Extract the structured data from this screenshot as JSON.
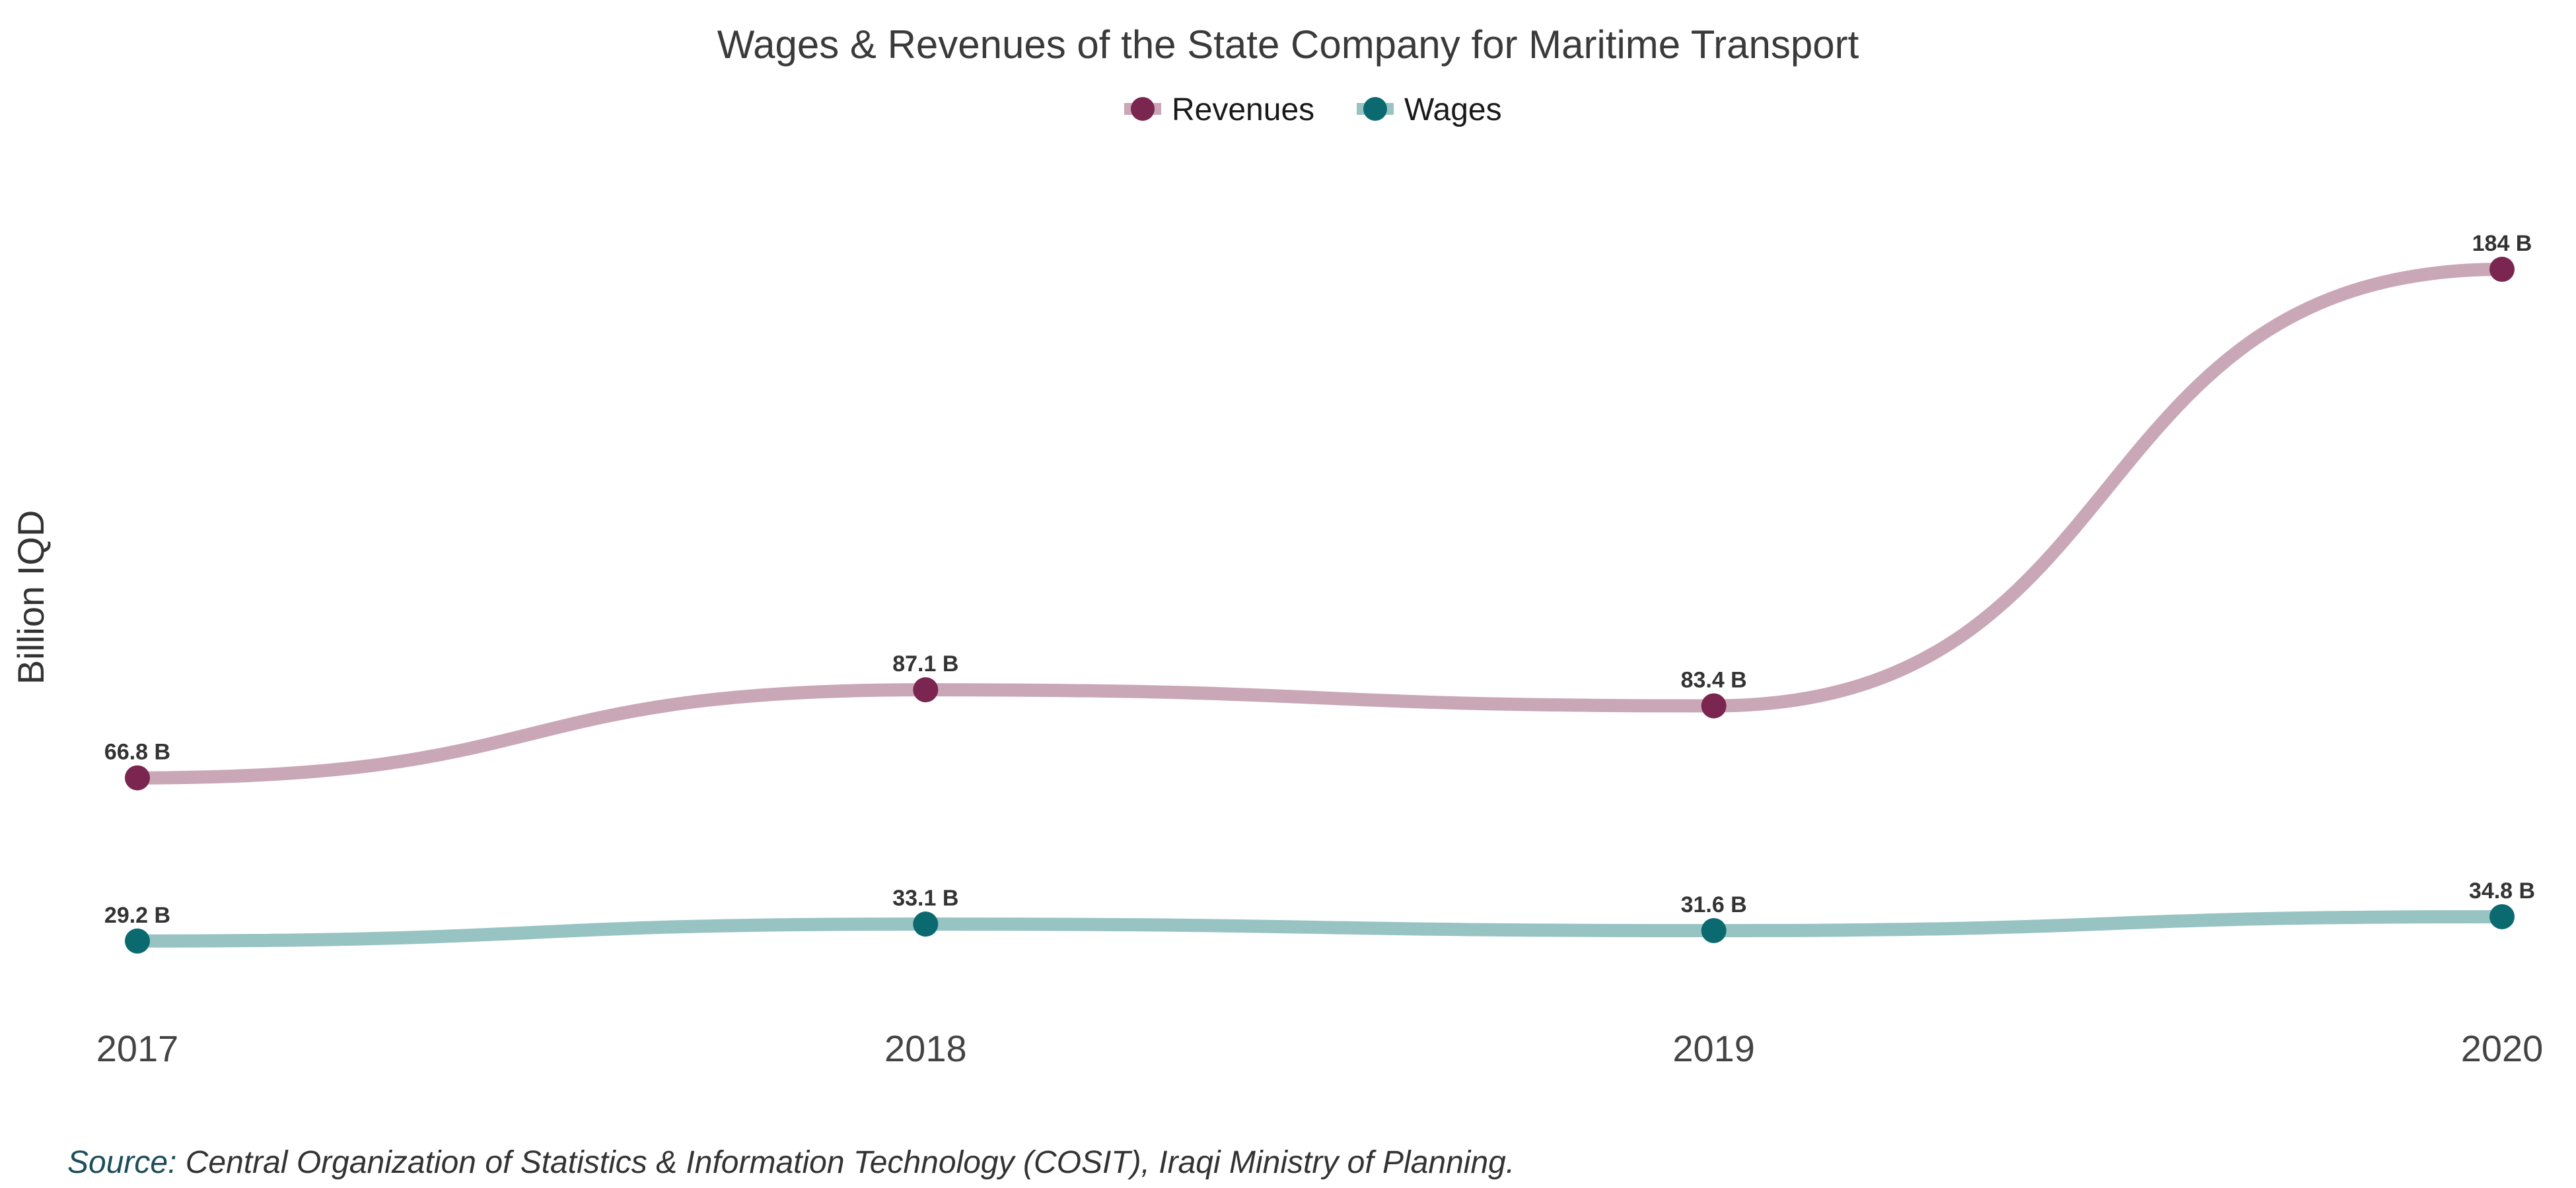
{
  "chart_data": {
    "type": "line",
    "title": "Wages & Revenues of the State Company for Maritime Transport",
    "xlabel": "",
    "ylabel": "Billion IQD",
    "x": [
      "2017",
      "2018",
      "2019",
      "2020"
    ],
    "ylim": [
      10,
      205
    ],
    "grid": false,
    "legend_position": "top",
    "series": [
      {
        "name": "Revenues",
        "values": [
          66.8,
          87.1,
          83.4,
          184
        ],
        "labels": [
          "66.8 B",
          "87.1 B",
          "83.4 B",
          "184 B"
        ],
        "line_color": "#c9a7b7",
        "point_color": "#7a2650"
      },
      {
        "name": "Wages",
        "values": [
          29.2,
          33.1,
          31.6,
          34.8
        ],
        "labels": [
          "29.2 B",
          "33.1 B",
          "31.6 B",
          "34.8 B"
        ],
        "line_color": "#98c3c3",
        "point_color": "#0b6a70"
      }
    ],
    "caption": {
      "prefix": "Source:",
      "text": " Central Organization of Statistics & Information Technology (COSIT), Iraqi Ministry of Planning.",
      "prefix_color": "#1d4e5a"
    }
  }
}
